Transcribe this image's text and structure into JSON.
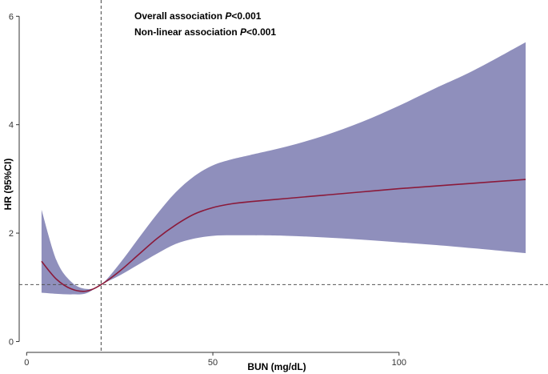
{
  "chart_data": {
    "type": "line",
    "xlabel": "BUN (mg/dL)",
    "ylabel": "HR (95%CI)",
    "xlim": [
      -2,
      140
    ],
    "ylim": [
      -0.2,
      6.3
    ],
    "x_ticks": [
      0,
      50,
      100
    ],
    "y_ticks": [
      0,
      2,
      4,
      6
    ],
    "x_tick_labels": [
      "0",
      "50",
      "100"
    ],
    "y_tick_labels": [
      "0",
      "2",
      "4",
      "6"
    ],
    "reference_line_y": 1.05,
    "reference_line_x": 20,
    "annotations": [
      {
        "prefix": "Overall association ",
        "italic": "P",
        "suffix": "<0.001"
      },
      {
        "prefix": "Non-linear association ",
        "italic": "P",
        "suffix": "<0.001"
      }
    ],
    "series": [
      {
        "x": [
          4,
          8,
          12,
          16,
          20,
          25,
          30,
          35,
          40,
          45,
          50,
          55,
          60,
          70,
          80,
          90,
          100,
          110,
          120,
          134
        ],
        "y": [
          1.48,
          1.15,
          0.97,
          0.93,
          1.05,
          1.3,
          1.6,
          1.9,
          2.15,
          2.35,
          2.47,
          2.54,
          2.58,
          2.64,
          2.7,
          2.76,
          2.82,
          2.87,
          2.92,
          2.99
        ],
        "lower": [
          0.9,
          0.88,
          0.87,
          0.89,
          1.05,
          1.22,
          1.42,
          1.62,
          1.8,
          1.9,
          1.95,
          1.96,
          1.96,
          1.95,
          1.92,
          1.88,
          1.83,
          1.78,
          1.72,
          1.63
        ],
        "upper": [
          2.43,
          1.5,
          1.1,
          0.97,
          1.05,
          1.44,
          1.9,
          2.35,
          2.75,
          3.05,
          3.25,
          3.36,
          3.44,
          3.6,
          3.8,
          4.05,
          4.35,
          4.68,
          5.0,
          5.52
        ]
      }
    ],
    "colors": {
      "band": "#8f8fbc",
      "line": "#8b1a3a",
      "reference": "#555555",
      "axis": "#333333"
    }
  }
}
